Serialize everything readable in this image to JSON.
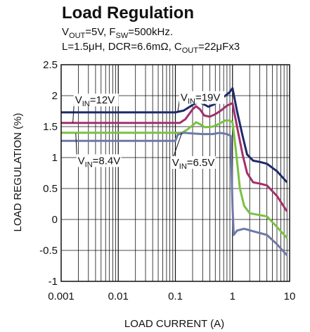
{
  "chart_data": {
    "type": "line",
    "title": "Load Regulation",
    "conditions": {
      "line1": {
        "v_sym": "V",
        "v_sub": "OUT",
        "v_rest": "=5V, F",
        "f_sub": "SW",
        "f_rest": "=500kHz."
      },
      "line2": {
        "prefix": "L=1.5μH, DCR=6.6mΩ, C",
        "c_sub": "OUT",
        "c_rest": "=22μFx3"
      }
    },
    "xlabel": "LOAD CURRENT (A)",
    "ylabel": "LOAD REGULATION (%)",
    "xscale": "log",
    "xlim": [
      0.001,
      10
    ],
    "ylim": [
      -1,
      2.5
    ],
    "grid": true,
    "x_tick_labels": [
      "0.001",
      "0.01",
      "0.1",
      "1",
      "10"
    ],
    "y_tick_labels": [
      "2.5",
      "2",
      "1.5",
      "1",
      "0.5",
      "0",
      "-0.5",
      "-1"
    ],
    "series": [
      {
        "name": "VIN=19V",
        "label": {
          "v": "V",
          "sub": "IN",
          "rest": "=19V"
        },
        "color": "#1f2a6b",
        "points": [
          [
            0.001,
            1.73
          ],
          [
            0.1,
            1.73
          ],
          [
            0.14,
            1.76
          ],
          [
            0.2,
            1.85
          ],
          [
            0.26,
            1.9
          ],
          [
            0.3,
            1.87
          ],
          [
            0.38,
            1.82
          ],
          [
            0.48,
            1.86
          ],
          [
            0.6,
            1.93
          ],
          [
            0.75,
            2.0
          ],
          [
            0.88,
            2.05
          ],
          [
            1.0,
            2.12
          ],
          [
            1.2,
            1.75
          ],
          [
            1.5,
            1.35
          ],
          [
            1.8,
            1.05
          ],
          [
            2.3,
            0.95
          ],
          [
            3.0,
            0.93
          ],
          [
            4.0,
            0.9
          ],
          [
            6.0,
            0.78
          ],
          [
            9.0,
            0.6
          ]
        ]
      },
      {
        "name": "VIN=12V",
        "label": {
          "v": "V",
          "sub": "IN",
          "rest": "=12V"
        },
        "color": "#a3306a",
        "points": [
          [
            0.001,
            1.56
          ],
          [
            0.12,
            1.56
          ],
          [
            0.15,
            1.62
          ],
          [
            0.2,
            1.78
          ],
          [
            0.23,
            1.83
          ],
          [
            0.27,
            1.78
          ],
          [
            0.32,
            1.68
          ],
          [
            0.4,
            1.66
          ],
          [
            0.5,
            1.7
          ],
          [
            0.65,
            1.77
          ],
          [
            0.8,
            1.84
          ],
          [
            1.0,
            1.88
          ],
          [
            1.2,
            1.5
          ],
          [
            1.5,
            1.05
          ],
          [
            1.8,
            0.75
          ],
          [
            2.3,
            0.6
          ],
          [
            3.0,
            0.58
          ],
          [
            4.0,
            0.55
          ],
          [
            6.0,
            0.38
          ],
          [
            9.0,
            0.13
          ]
        ]
      },
      {
        "name": "VIN=8.4V",
        "label": {
          "v": "V",
          "sub": "IN",
          "rest": "=8.4V"
        },
        "color": "#7ac142",
        "points": [
          [
            0.001,
            1.4
          ],
          [
            0.13,
            1.4
          ],
          [
            0.16,
            1.45
          ],
          [
            0.2,
            1.52
          ],
          [
            0.23,
            1.57
          ],
          [
            0.27,
            1.54
          ],
          [
            0.33,
            1.49
          ],
          [
            0.45,
            1.5
          ],
          [
            0.6,
            1.55
          ],
          [
            0.75,
            1.6
          ],
          [
            0.88,
            1.6
          ],
          [
            1.0,
            1.57
          ],
          [
            1.15,
            1.1
          ],
          [
            1.35,
            0.5
          ],
          [
            1.6,
            0.22
          ],
          [
            2.0,
            0.1
          ],
          [
            3.0,
            0.07
          ],
          [
            4.0,
            0.05
          ],
          [
            6.0,
            -0.12
          ],
          [
            9.0,
            -0.3
          ]
        ]
      },
      {
        "name": "VIN=6.5V",
        "label": {
          "v": "V",
          "sub": "IN",
          "rest": "=6.5V"
        },
        "color": "#6f78a8",
        "points": [
          [
            0.001,
            1.27
          ],
          [
            0.1,
            1.27
          ],
          [
            0.11,
            1.37
          ],
          [
            0.14,
            1.4
          ],
          [
            0.2,
            1.39
          ],
          [
            0.3,
            1.38
          ],
          [
            0.45,
            1.38
          ],
          [
            0.6,
            1.4
          ],
          [
            0.8,
            1.38
          ],
          [
            0.93,
            1.35
          ],
          [
            1.0,
            0.2
          ],
          [
            1.05,
            -0.25
          ],
          [
            1.2,
            -0.18
          ],
          [
            1.6,
            -0.15
          ],
          [
            2.5,
            -0.2
          ],
          [
            4.0,
            -0.25
          ],
          [
            6.0,
            -0.4
          ],
          [
            9.0,
            -0.58
          ]
        ]
      }
    ],
    "annotations": [
      {
        "series": "VIN=12V",
        "anchor_x": 0.0016,
        "anchor_y": 1.56,
        "label_x": 0.0017,
        "label_y": 1.93,
        "side": "right"
      },
      {
        "series": "VIN=19V",
        "anchor_x": 0.11,
        "anchor_y": 1.74,
        "label_x": 0.12,
        "label_y": 1.97,
        "side": "right"
      },
      {
        "series": "VIN=8.4V",
        "anchor_x": 0.0018,
        "anchor_y": 1.39,
        "label_x": 0.0019,
        "label_y": 0.95,
        "side": "right"
      },
      {
        "series": "VIN=6.5V",
        "anchor_x": 0.13,
        "anchor_y": 1.4,
        "label_x": 0.085,
        "label_y": 0.92,
        "side": "right"
      }
    ]
  }
}
